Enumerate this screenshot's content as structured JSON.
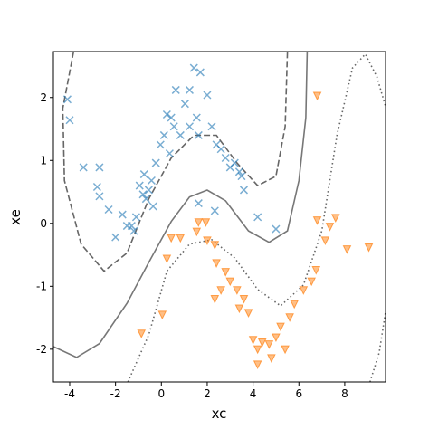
{
  "chart_data": {
    "type": "scatter",
    "x_label": "xc",
    "y_label": "xe",
    "xlim": [
      -4.71,
      9.78
    ],
    "ylim": [
      -2.52,
      2.73
    ],
    "xticks": [
      -4,
      -2,
      0,
      2,
      4,
      6,
      8
    ],
    "yticks": [
      -2,
      -1,
      0,
      1,
      2
    ],
    "series": [
      {
        "marker": "x",
        "color": "#1f77b4",
        "x": [
          -4.1,
          -4.0,
          -3.4,
          -2.7,
          -2.8,
          -2.7,
          -2.3,
          -2.0,
          -1.7,
          -1.5,
          -1.2,
          -1.1,
          -0.75,
          -0.8,
          -0.67,
          -0.55,
          -0.43,
          -0.36,
          -0.24,
          -0.04,
          0.12,
          0.24,
          0.43,
          0.55,
          0.36,
          0.63,
          1.03,
          1.23,
          1.42,
          1.7,
          0.83,
          1.23,
          1.54,
          2.0,
          2.2,
          1.62,
          2.4,
          2.6,
          2.8,
          3.0,
          3.2,
          3.4,
          1.62,
          2.33,
          3.6,
          4.2,
          5.0,
          3.5,
          -0.95,
          -1.3
        ],
        "y": [
          1.97,
          1.64,
          0.89,
          0.89,
          0.58,
          0.43,
          0.22,
          -0.22,
          0.14,
          -0.04,
          -0.12,
          0.1,
          0.78,
          0.46,
          0.39,
          0.53,
          0.68,
          0.27,
          0.96,
          1.25,
          1.4,
          1.73,
          1.68,
          1.54,
          1.11,
          2.12,
          1.9,
          2.12,
          2.47,
          2.4,
          1.4,
          1.54,
          1.68,
          2.04,
          1.54,
          1.4,
          1.25,
          1.18,
          1.04,
          0.89,
          0.96,
          0.82,
          0.32,
          0.2,
          0.53,
          0.1,
          -0.09,
          0.75,
          0.6,
          -0.04
        ]
      },
      {
        "marker": "v",
        "color": "#ff7f0e",
        "x": [
          6.8,
          6.8,
          7.6,
          7.15,
          7.35,
          9.05,
          8.1,
          6.75,
          6.55,
          6.2,
          5.8,
          5.6,
          5.2,
          1.62,
          2.0,
          1.54,
          2.33,
          0.83,
          0.43,
          0.24,
          2.4,
          2.8,
          3.0,
          3.3,
          2.6,
          3.6,
          3.4,
          3.8,
          0.04,
          -0.87,
          4.0,
          4.2,
          4.4,
          4.7,
          4.8,
          4.2,
          5.0,
          5.4,
          2.33,
          1.94
        ],
        "y": [
          2.04,
          0.06,
          0.1,
          -0.26,
          -0.04,
          -0.37,
          -0.4,
          -0.73,
          -0.91,
          -1.05,
          -1.27,
          -1.48,
          -1.63,
          0.03,
          -0.26,
          -0.12,
          -0.33,
          -0.22,
          -0.22,
          -0.55,
          -0.62,
          -0.76,
          -0.91,
          -1.05,
          -1.05,
          -1.19,
          -1.34,
          -1.41,
          -1.44,
          -1.74,
          -1.84,
          -1.99,
          -1.88,
          -1.91,
          -2.13,
          -2.23,
          -1.8,
          -1.99,
          -1.19,
          0.03
        ]
      }
    ],
    "lines": [
      {
        "style": "solid",
        "color": "#777777",
        "x": [
          -4.7,
          -3.7,
          -2.7,
          -1.5,
          -0.55,
          0.43,
          1.23,
          2.0,
          2.8,
          3.8,
          4.7,
          5.5,
          6.0,
          6.3,
          6.36
        ],
        "y": [
          -1.96,
          -2.13,
          -1.91,
          -1.27,
          -0.62,
          0.03,
          0.42,
          0.53,
          0.36,
          -0.12,
          -0.3,
          -0.12,
          0.68,
          1.68,
          2.73
        ]
      },
      {
        "style": "dashed",
        "color": "#666666",
        "x": [
          -3.83,
          -4.3,
          -4.23,
          -3.5,
          -2.5,
          -1.5,
          -0.55,
          0.43,
          1.42,
          2.4,
          3.3,
          4.2,
          5.0,
          5.4,
          5.5
        ],
        "y": [
          2.73,
          1.83,
          0.68,
          -0.33,
          -0.76,
          -0.47,
          0.39,
          1.04,
          1.4,
          1.4,
          0.96,
          0.6,
          0.75,
          1.54,
          2.73
        ]
      },
      {
        "style": "dotted",
        "color": "#666666",
        "x": [
          -1.46,
          -0.55,
          0.24,
          1.23,
          2.2,
          3.2,
          4.2,
          5.2,
          6.2,
          7.0,
          7.66,
          8.34,
          8.9,
          9.4,
          9.78,
          null,
          9.1,
          9.5,
          9.78
        ],
        "y": [
          -2.52,
          -1.77,
          -0.76,
          -0.33,
          -0.26,
          -0.55,
          -1.05,
          -1.31,
          -0.98,
          -0.12,
          1.4,
          2.47,
          2.69,
          2.33,
          1.86,
          null,
          -2.52,
          -2.06,
          -1.41
        ]
      }
    ]
  }
}
